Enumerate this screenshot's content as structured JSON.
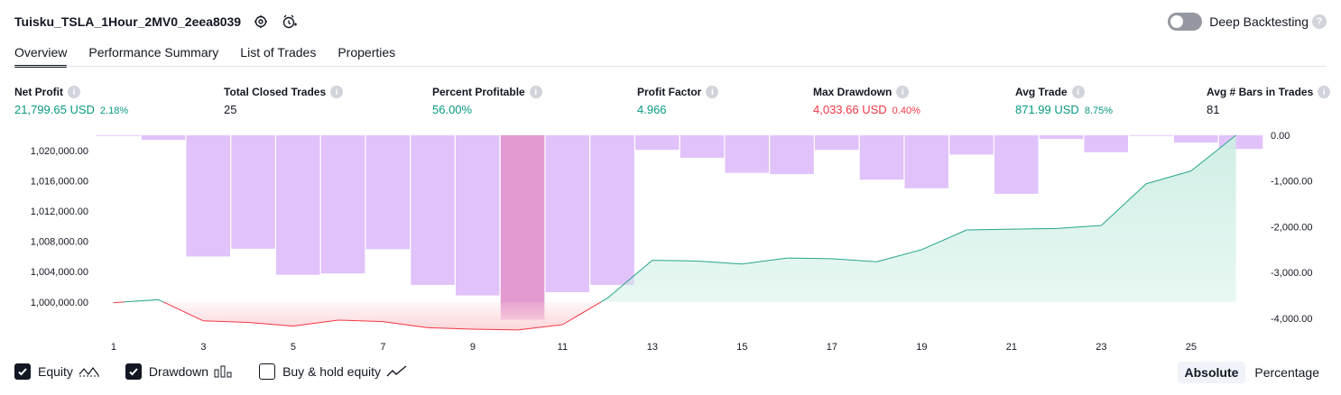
{
  "header": {
    "title": "Tuisku_TSLA_1Hour_2MV0_2eea8039",
    "deep_backtesting_label": "Deep Backtesting",
    "deep_backtesting_on": false,
    "help_glyph": "?"
  },
  "tabs": [
    {
      "label": "Overview",
      "active": true
    },
    {
      "label": "Performance Summary",
      "active": false
    },
    {
      "label": "List of Trades",
      "active": false
    },
    {
      "label": "Properties",
      "active": false
    }
  ],
  "info_glyph": "i",
  "metrics": {
    "net_profit": {
      "label": "Net Profit",
      "value": "21,799.65 USD",
      "pct": "2.18%"
    },
    "total_closed_trades": {
      "label": "Total Closed Trades",
      "value": "25"
    },
    "percent_profitable": {
      "label": "Percent Profitable",
      "value": "56.00%"
    },
    "profit_factor": {
      "label": "Profit Factor",
      "value": "4.966"
    },
    "max_drawdown": {
      "label": "Max Drawdown",
      "value": "4,033.66 USD",
      "pct": "0.40%"
    },
    "avg_trade": {
      "label": "Avg Trade",
      "value": "871.99 USD",
      "pct": "8.75%"
    },
    "avg_bars": {
      "label": "Avg # Bars in Trades",
      "value": "81"
    }
  },
  "colors": {
    "positive": "#089981",
    "negative": "#f23645",
    "drawdown_bar": "#e1c2fb",
    "drawdown_bar_max": "#e39ad0",
    "equity_line": "#26a68a",
    "equity_fill": "#cdeee4",
    "equity_neg_line": "#f23645",
    "equity_neg_fill": "#fcd6da"
  },
  "chart_data": {
    "type": "bar+line",
    "x": [
      1,
      2,
      3,
      4,
      5,
      6,
      7,
      8,
      9,
      10,
      11,
      12,
      13,
      14,
      15,
      16,
      17,
      18,
      19,
      20,
      21,
      22,
      23,
      24,
      25,
      26
    ],
    "x_tick_labels": [
      "1",
      "3",
      "5",
      "7",
      "9",
      "11",
      "13",
      "15",
      "17",
      "19",
      "21",
      "23",
      "25"
    ],
    "left_axis": {
      "ticks": [
        1000000,
        1004000,
        1008000,
        1012000,
        1016000,
        1020000
      ],
      "tick_labels": [
        "1,000,000.00",
        "1,004,000.00",
        "1,008,000.00",
        "1,012,000.00",
        "1,016,000.00",
        "1,020,000.00"
      ],
      "ylim": [
        997000,
        1022000
      ]
    },
    "right_axis": {
      "ticks": [
        0,
        -1000,
        -2000,
        -3000,
        -4000
      ],
      "tick_labels": [
        "0.00",
        "-1,000.00",
        "-2,000.00",
        "-3,000.00",
        "-4,000.00"
      ],
      "ylim": [
        -4100,
        0
      ]
    },
    "series": [
      {
        "name": "Equity",
        "axis": "left",
        "values": [
          999900,
          1000300,
          997500,
          997300,
          996800,
          997600,
          997400,
          996600,
          996400,
          996300,
          997000,
          1000500,
          1005500,
          1005400,
          1005000,
          1005800,
          1005700,
          1005300,
          1006900,
          1009500,
          1009600,
          1009700,
          1010100,
          1015600,
          1017300,
          1022000
        ]
      },
      {
        "name": "Drawdown",
        "axis": "right",
        "values": [
          -10,
          -100,
          -2650,
          -2480,
          -3050,
          -3020,
          -2490,
          -3270,
          -3500,
          -4033.66,
          -3430,
          -3270,
          -320,
          -490,
          -820,
          -850,
          -320,
          -970,
          -1160,
          -420,
          -1280,
          -80,
          -370,
          -10,
          -160,
          -300
        ]
      }
    ],
    "legend": [
      {
        "label": "Equity",
        "checked": true,
        "icon": "equity-line-icon"
      },
      {
        "label": "Drawdown",
        "checked": true,
        "icon": "drawdown-bars-icon"
      },
      {
        "label": "Buy & hold equity",
        "checked": false,
        "icon": "buy-hold-line-icon"
      }
    ]
  },
  "view_mode": {
    "options": [
      "Absolute",
      "Percentage"
    ],
    "selected": "Absolute"
  }
}
